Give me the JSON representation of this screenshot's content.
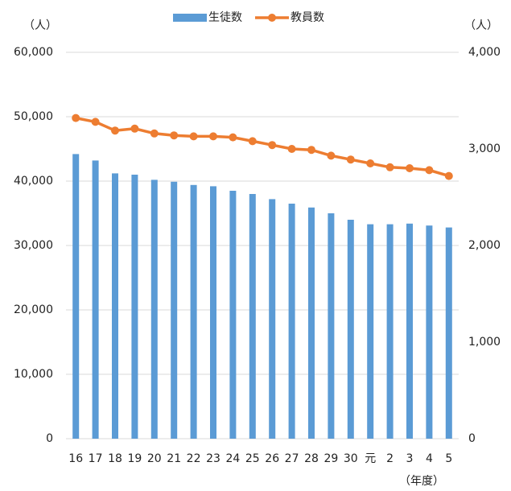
{
  "chart_data": {
    "type": "bar-line",
    "y_unit": "（人）",
    "y2_unit": "（人）",
    "x_unit": "（年度）",
    "categories": [
      "16",
      "17",
      "18",
      "19",
      "20",
      "21",
      "22",
      "23",
      "24",
      "25",
      "26",
      "27",
      "28",
      "29",
      "30",
      "元",
      "2",
      "3",
      "4",
      "5"
    ],
    "series": [
      {
        "name": "生徒数",
        "type": "bar",
        "color": "#5b9bd5",
        "values": [
          44200,
          43200,
          41200,
          41000,
          40200,
          39900,
          39400,
          39200,
          38500,
          38000,
          37200,
          36500,
          35900,
          35000,
          34000,
          33300,
          33300,
          33400,
          33100,
          32800
        ]
      },
      {
        "name": "教員数",
        "type": "line",
        "axis": "y2",
        "color": "#ed7d31",
        "values": [
          3320,
          3280,
          3190,
          3210,
          3160,
          3140,
          3130,
          3130,
          3120,
          3080,
          3040,
          3000,
          2990,
          2930,
          2890,
          2850,
          2810,
          2800,
          2780,
          2720
        ]
      }
    ],
    "ylim": [
      0,
      60000
    ],
    "yticks": [
      0,
      {
        "value": 10000,
        "label": "10,000"
      },
      {
        "value": 20000,
        "label": "20,000"
      },
      {
        "value": 30000,
        "label": "30,000"
      },
      {
        "value": 40000,
        "label": "40,000"
      },
      {
        "value": 50000,
        "label": "50,000"
      },
      {
        "value": 60000,
        "label": "60,000"
      }
    ],
    "y2lim": [
      0,
      4000
    ],
    "y2ticks": [
      0,
      {
        "value": 1000,
        "label": "1,000"
      },
      {
        "value": 2000,
        "label": "2,000"
      },
      {
        "value": 3000,
        "label": "3,000"
      },
      {
        "value": 4000,
        "label": "4,000"
      }
    ],
    "grid": true,
    "legend": "top"
  }
}
